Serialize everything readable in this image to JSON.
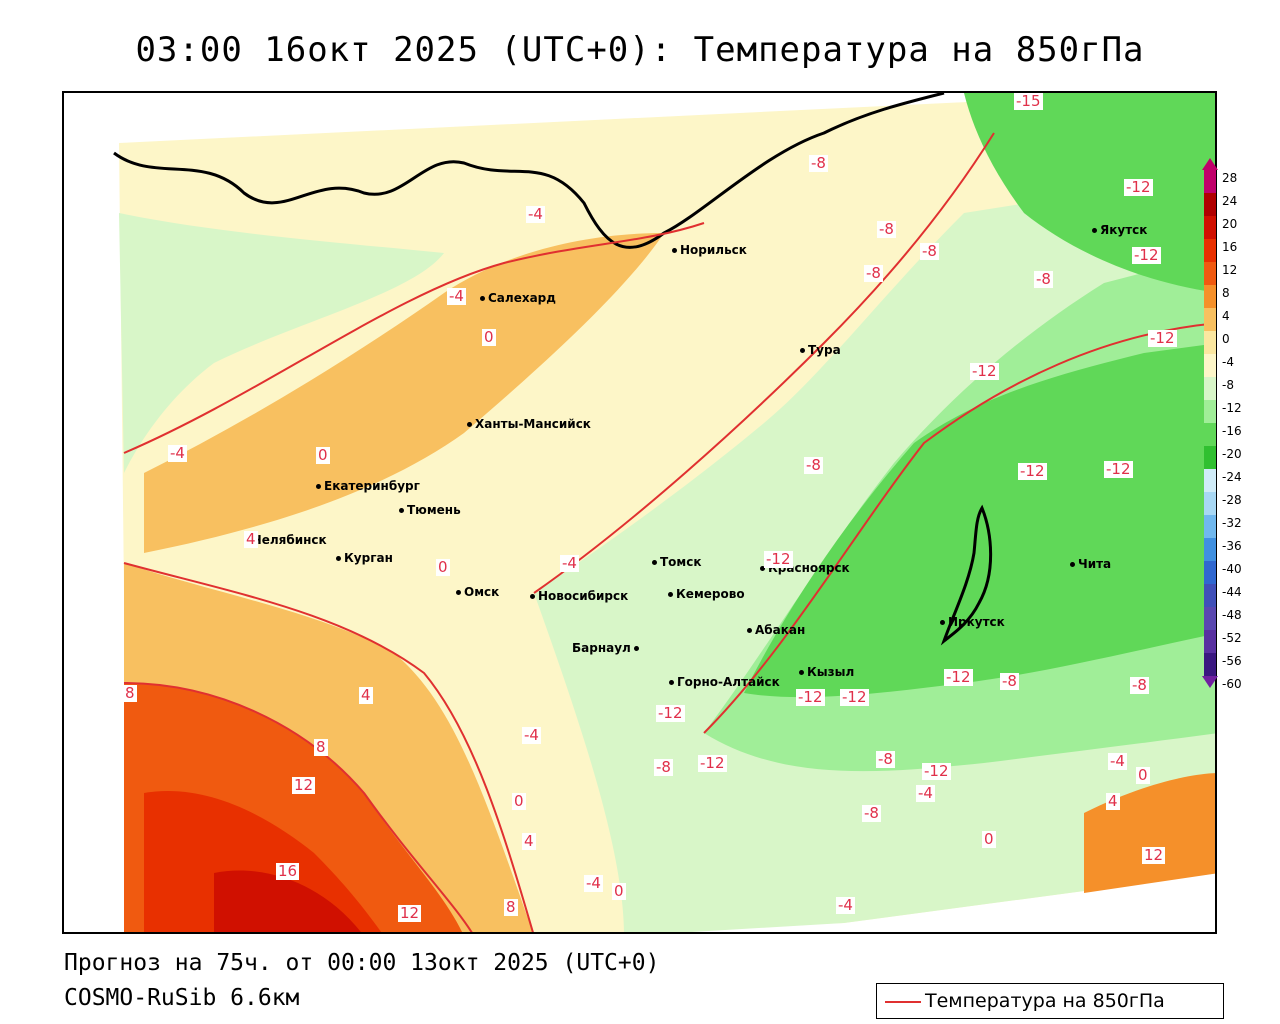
{
  "title": "03:00 16окт 2025 (UTC+0): Температура на 850гПа",
  "forecast_line": "Прогноз на 75ч. от 00:00 13окт 2025 (UTC+0)",
  "model_line": "COSMO-RuSib 6.6км",
  "legend": {
    "label": "Температура на 850гПа",
    "line_color": "#e03030"
  },
  "colorbar": {
    "labels": [
      "28",
      "24",
      "20",
      "16",
      "12",
      "8",
      "4",
      "0",
      "-4",
      "-8",
      "-12",
      "-16",
      "-20",
      "-24",
      "-28",
      "-32",
      "-36",
      "-40",
      "-44",
      "-48",
      "-52",
      "-56",
      "-60"
    ],
    "colors": [
      "#c0006a",
      "#b00000",
      "#d01000",
      "#e83000",
      "#f05a10",
      "#f5902a",
      "#f8c060",
      "#fbe7a0",
      "#fdf6c8",
      "#d8f6c8",
      "#a0ee98",
      "#60d858",
      "#30c030",
      "#d0ecf8",
      "#a8d8f4",
      "#70b8ee",
      "#4090e0",
      "#3068d0",
      "#4050b8",
      "#5a48b0",
      "#5830a0",
      "#3a1880",
      "#7020a0"
    ]
  },
  "cities": [
    {
      "name": "Норильск"
    },
    {
      "name": "Салехард"
    },
    {
      "name": "Якутск"
    },
    {
      "name": "Тура"
    },
    {
      "name": "Ханты-Мансийск"
    },
    {
      "name": "Екатеринбург"
    },
    {
      "name": "Тюмень"
    },
    {
      "name": "Челябинск"
    },
    {
      "name": "Курган"
    },
    {
      "name": "Омск"
    },
    {
      "name": "Новосибирск"
    },
    {
      "name": "Томск"
    },
    {
      "name": "Кемерово"
    },
    {
      "name": "Красноярск"
    },
    {
      "name": "Барнаул"
    },
    {
      "name": "Абакан"
    },
    {
      "name": "Горно-Алтайск"
    },
    {
      "name": "Кызыл"
    },
    {
      "name": "Иркутск"
    },
    {
      "name": "Чита"
    }
  ],
  "contour_labels": [
    "-12",
    "-8",
    "-4",
    "0",
    "4",
    "8",
    "12",
    "16",
    "-15"
  ]
}
